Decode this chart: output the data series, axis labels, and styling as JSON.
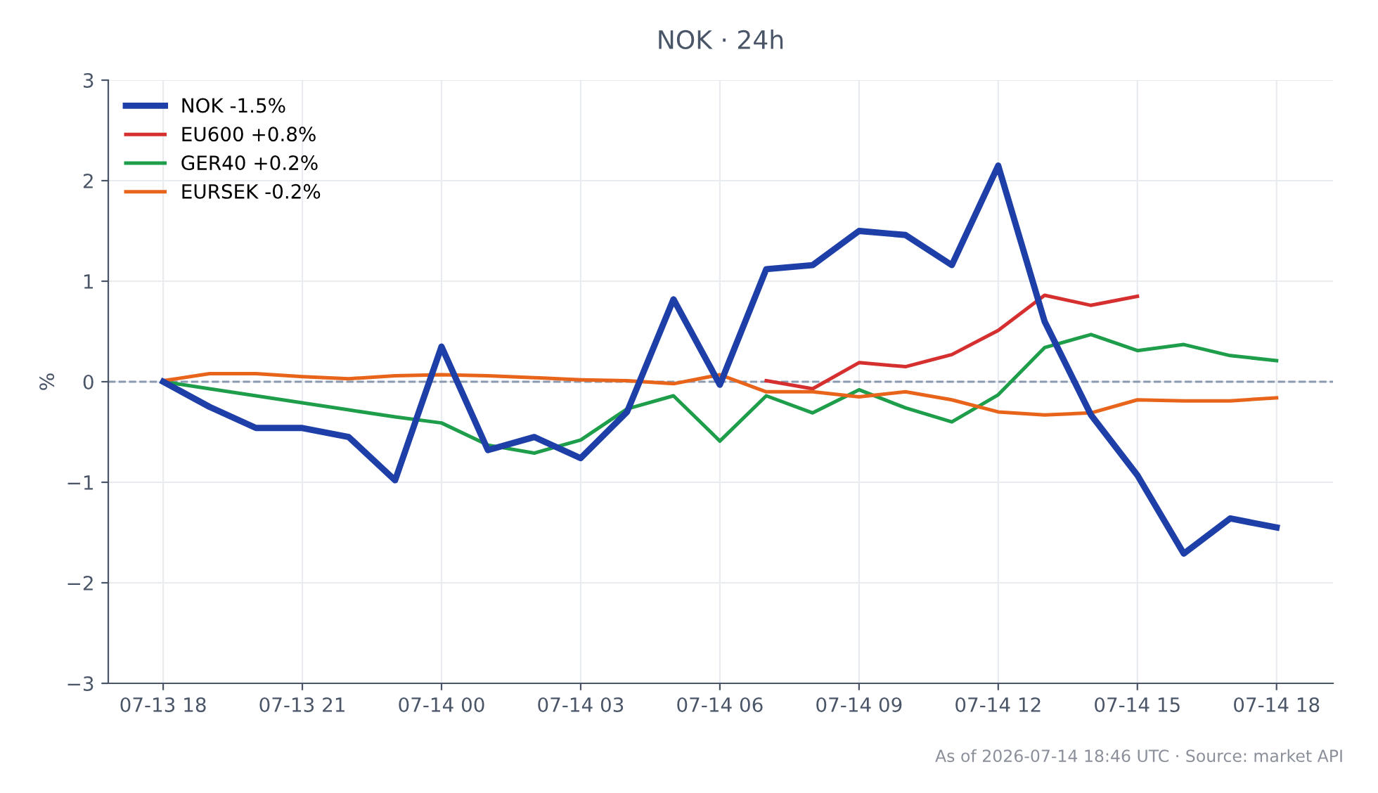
{
  "chart_data": {
    "type": "line",
    "title": "NOK · 24h",
    "ylabel": "%",
    "xlim": [
      "2026-07-13T16:49",
      "2026-07-14T19:13"
    ],
    "xticks": [
      {
        "value": "2026-07-13T18:00",
        "label": "07-13 18"
      },
      {
        "value": "2026-07-13T21:00",
        "label": "07-13 21"
      },
      {
        "value": "2026-07-14T00:00",
        "label": "07-14 00"
      },
      {
        "value": "2026-07-14T03:00",
        "label": "07-14 03"
      },
      {
        "value": "2026-07-14T06:00",
        "label": "07-14 06"
      },
      {
        "value": "2026-07-14T09:00",
        "label": "07-14 09"
      },
      {
        "value": "2026-07-14T12:00",
        "label": "07-14 12"
      },
      {
        "value": "2026-07-14T15:00",
        "label": "07-14 15"
      },
      {
        "value": "2026-07-14T18:00",
        "label": "07-14 18"
      }
    ],
    "ylim": [
      -3,
      3
    ],
    "yticks": [
      {
        "value": -3,
        "label": "−3"
      },
      {
        "value": -2,
        "label": "−2"
      },
      {
        "value": -1,
        "label": "−1"
      },
      0,
      1,
      2,
      3
    ],
    "x": [
      "2026-07-13T18:00",
      "2026-07-13T19:00",
      "2026-07-13T20:00",
      "2026-07-13T21:00",
      "2026-07-13T22:00",
      "2026-07-13T23:00",
      "2026-07-14T00:00",
      "2026-07-14T01:00",
      "2026-07-14T02:00",
      "2026-07-14T03:00",
      "2026-07-14T04:00",
      "2026-07-14T05:00",
      "2026-07-14T06:00",
      "2026-07-14T07:00",
      "2026-07-14T08:00",
      "2026-07-14T09:00",
      "2026-07-14T10:00",
      "2026-07-14T11:00",
      "2026-07-14T12:00",
      "2026-07-14T13:00",
      "2026-07-14T14:00",
      "2026-07-14T15:00",
      "2026-07-14T16:00",
      "2026-07-14T17:00",
      "2026-07-14T18:00"
    ],
    "series": [
      {
        "name": "NOK -1.5%",
        "color": "#1f3fa8",
        "values": [
          0,
          -0.25,
          -0.46,
          -0.46,
          -0.55,
          -0.98,
          0.35,
          -0.68,
          -0.55,
          -0.76,
          -0.3,
          0.82,
          -0.03,
          1.12,
          1.16,
          1.5,
          1.46,
          1.16,
          2.15,
          0.6,
          -0.33,
          -0.93,
          -1.71,
          -1.36,
          -1.45
        ]
      },
      {
        "name": "EU600 +0.8%",
        "color": "#d62f2f",
        "x": [
          "2026-07-14T07:00",
          "2026-07-14T08:00",
          "2026-07-14T09:00",
          "2026-07-14T10:00",
          "2026-07-14T11:00",
          "2026-07-14T12:00",
          "2026-07-14T13:00",
          "2026-07-14T14:00",
          "2026-07-14T15:00"
        ],
        "values": [
          0.01,
          -0.07,
          0.19,
          0.15,
          0.27,
          0.51,
          0.86,
          0.76,
          0.85
        ]
      },
      {
        "name": "GER40 +0.2%",
        "color": "#1e9e4a",
        "values": [
          0,
          -0.07,
          -0.14,
          -0.21,
          -0.28,
          -0.35,
          -0.41,
          -0.63,
          -0.71,
          -0.58,
          -0.27,
          -0.14,
          -0.59,
          -0.14,
          -0.31,
          -0.08,
          -0.26,
          -0.4,
          -0.13,
          0.34,
          0.47,
          0.31,
          0.37,
          0.26,
          0.21
        ]
      },
      {
        "name": "EURSEK -0.2%",
        "color": "#e8641b",
        "values": [
          0.01,
          0.08,
          0.08,
          0.05,
          0.03,
          0.06,
          0.07,
          0.06,
          0.04,
          0.02,
          0.01,
          -0.02,
          0.07,
          -0.1,
          -0.1,
          -0.15,
          -0.1,
          -0.18,
          -0.3,
          -0.33,
          -0.31,
          -0.18,
          -0.19,
          -0.19,
          -0.16
        ]
      }
    ],
    "ref_lines": [
      {
        "axis": "y",
        "value": 0,
        "color": "#8a99b0",
        "line_style": "dashed"
      }
    ],
    "grid": true,
    "legend": "top left",
    "line_style": "solid",
    "marker": "none",
    "annotations": [
      "As of 2026-07-14 18:46 UTC · Source: market API"
    ]
  }
}
